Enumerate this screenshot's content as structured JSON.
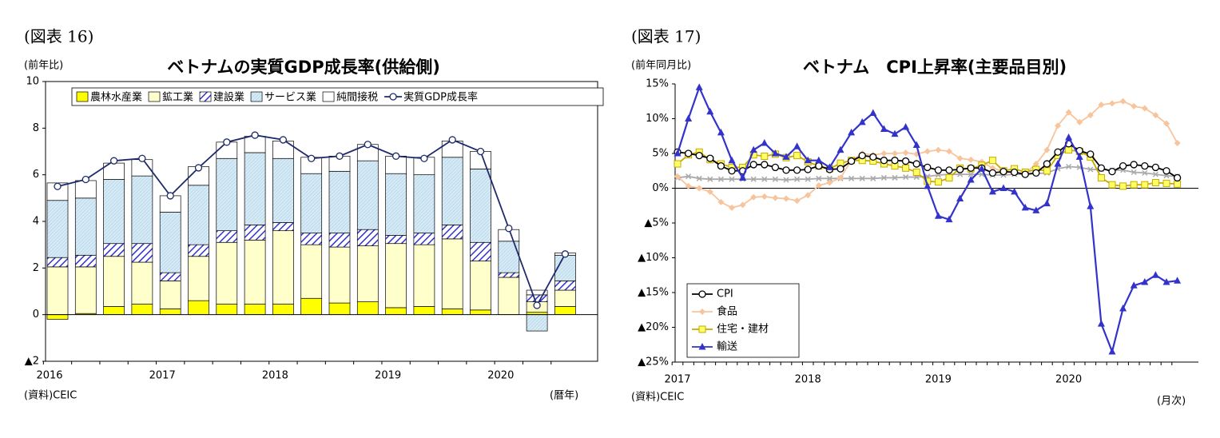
{
  "chart_data": [
    {
      "type": "bar",
      "stacked": true,
      "label": "(図表 16)",
      "title": "ベトナムの実質GDP成長率(供給側)",
      "y_label": "(前年比)",
      "source": "(資料)CEIC",
      "x_label": "(暦年)",
      "categories": [
        "2016",
        null,
        null,
        null,
        "2017",
        null,
        null,
        null,
        "2018",
        null,
        null,
        null,
        "2019",
        null,
        null,
        null,
        "2020",
        null,
        null
      ],
      "ylim": [
        -2,
        10
      ],
      "yticks": [
        {
          "value": -2,
          "label": "▲2"
        },
        0,
        2,
        4,
        6,
        8,
        10
      ],
      "series": [
        {
          "name": "農林水産業",
          "color": "#ffff00",
          "values": [
            -0.2,
            0.05,
            0.35,
            0.45,
            0.25,
            0.6,
            0.45,
            0.45,
            0.45,
            0.7,
            0.5,
            0.55,
            0.3,
            0.35,
            0.25,
            0.2,
            0,
            0.1,
            0.35
          ]
        },
        {
          "name": "鉱工業",
          "color": "#ffffcc",
          "values": [
            2.05,
            2.0,
            2.15,
            1.8,
            1.2,
            1.9,
            2.65,
            2.75,
            3.15,
            2.3,
            2.4,
            2.4,
            2.75,
            2.65,
            3.0,
            2.1,
            1.6,
            0.45,
            0.7
          ]
        },
        {
          "name": "建設業",
          "color": "#3333cc",
          "hatch": "wide",
          "values": [
            0.4,
            0.5,
            0.55,
            0.8,
            0.35,
            0.5,
            0.5,
            0.65,
            0.35,
            0.5,
            0.6,
            0.7,
            0.35,
            0.5,
            0.6,
            0.8,
            0.2,
            0.3,
            0.4
          ]
        },
        {
          "name": "サービス業",
          "color": "#cfe6f2",
          "hatch": "fine",
          "values": [
            2.45,
            2.45,
            2.75,
            2.9,
            2.6,
            2.55,
            3.1,
            3.1,
            2.75,
            2.55,
            2.65,
            2.95,
            2.65,
            2.5,
            2.9,
            3.15,
            1.35,
            -0.7,
            1.1
          ]
        },
        {
          "name": "純間接税",
          "color": "#ffffff",
          "values": [
            0.75,
            0.75,
            0.7,
            0.7,
            0.7,
            0.8,
            0.7,
            0.7,
            0.75,
            0.7,
            0.65,
            0.7,
            0.75,
            0.75,
            0.7,
            0.75,
            0.5,
            0.2,
            0.1
          ]
        },
        {
          "name": "実質GDP成長率",
          "type": "line",
          "color": "#1f2a6b",
          "marker": "circle",
          "values": [
            5.5,
            5.8,
            6.6,
            6.7,
            5.1,
            6.3,
            7.4,
            7.7,
            7.5,
            6.7,
            6.8,
            7.3,
            6.8,
            6.7,
            7.5,
            7.0,
            3.7,
            0.4,
            2.6
          ]
        }
      ]
    },
    {
      "type": "line",
      "label": "(図表 17)",
      "title": "ベトナム　CPI上昇率(主要品目別)",
      "y_label": "(前年同月比)",
      "source": "(資料)CEIC",
      "x_label": "(月次)",
      "categories": [
        "2017",
        null,
        null,
        null,
        null,
        null,
        null,
        null,
        null,
        null,
        null,
        null,
        "2018",
        null,
        null,
        null,
        null,
        null,
        null,
        null,
        null,
        null,
        null,
        null,
        "2019",
        null,
        null,
        null,
        null,
        null,
        null,
        null,
        null,
        null,
        null,
        null,
        "2020",
        null,
        null,
        null,
        null,
        null,
        null,
        null,
        null,
        null,
        null
      ],
      "ylim": [
        -25,
        15
      ],
      "yticks": [
        {
          "value": -25,
          "label": "▲25%"
        },
        {
          "value": -20,
          "label": "▲20%"
        },
        {
          "value": -15,
          "label": "▲15%"
        },
        {
          "value": -10,
          "label": "▲10%"
        },
        {
          "value": -5,
          "label": "▲5%"
        },
        {
          "value": 0,
          "label": "0%"
        },
        {
          "value": 5,
          "label": "5%"
        },
        {
          "value": 10,
          "label": "10%"
        },
        {
          "value": 15,
          "label": "15%"
        }
      ],
      "series": [
        {
          "color": "#aaaaaa",
          "marker": "x",
          "values": [
            1.5,
            1.7,
            1.4,
            1.3,
            1.3,
            1.3,
            1.3,
            1.3,
            1.3,
            1.3,
            1.2,
            1.3,
            1.3,
            1.4,
            1.4,
            1.4,
            1.4,
            1.4,
            1.4,
            1.5,
            1.5,
            1.6,
            1.6,
            1.7,
            1.9,
            2.0,
            2.0,
            2.0,
            2.0,
            1.9,
            1.9,
            2.0,
            2.0,
            2.1,
            2.2,
            2.8,
            3.1,
            3.0,
            2.7,
            2.7,
            2.6,
            2.6,
            2.3,
            2.2,
            2.0,
            1.8,
            1.7
          ]
        },
        {
          "name": "食品",
          "color": "#f8c49c",
          "marker": "diamond",
          "values": [
            1.7,
            0.3,
            0,
            -0.5,
            -2,
            -2.8,
            -2.4,
            -1.3,
            -1.2,
            -1.4,
            -1.5,
            -1.8,
            -1,
            0.4,
            0.8,
            1.5,
            4,
            5,
            4.8,
            5,
            5,
            5.1,
            4.9,
            5.3,
            5.5,
            5.3,
            4.3,
            4.1,
            3.8,
            2.9,
            2.4,
            2.2,
            2.1,
            3.5,
            5.5,
            9,
            10.9,
            9.5,
            10.5,
            12,
            12.2,
            12.5,
            11.8,
            11.5,
            10.5,
            9.3,
            6.5
          ]
        },
        {
          "name": "住宅・建材",
          "color": "#c8a800",
          "marker": "square",
          "values": [
            3.5,
            4.8,
            5.2,
            4.1,
            3.5,
            3.0,
            3.0,
            4.8,
            4.6,
            4.9,
            4.4,
            4.7,
            3.8,
            3.2,
            2.8,
            3.6,
            4.0,
            4.0,
            3.9,
            3.5,
            3.2,
            2.9,
            2.3,
            1.0,
            0.9,
            1.5,
            2.9,
            2.8,
            3.3,
            4.0,
            2.5,
            2.8,
            2.3,
            2.7,
            2.5,
            4.7,
            5.5,
            5.3,
            4.5,
            1.5,
            0.5,
            0.3,
            0.5,
            0.5,
            0.8,
            0.7,
            0.6
          ]
        },
        {
          "name": "CPI",
          "color": "#000000",
          "marker": "circle",
          "values": [
            5.2,
            5.0,
            4.7,
            4.3,
            3.2,
            2.5,
            2.5,
            3.4,
            3.4,
            3.0,
            2.6,
            2.6,
            2.7,
            3.2,
            2.7,
            2.8,
            3.9,
            4.7,
            4.5,
            4.0,
            4.0,
            3.9,
            3.5,
            3.0,
            2.6,
            2.6,
            2.7,
            2.9,
            2.9,
            2.2,
            2.4,
            2.3,
            2.0,
            2.2,
            3.5,
            5.2,
            6.4,
            5.4,
            4.9,
            2.9,
            2.4,
            3.2,
            3.4,
            3.2,
            3.0,
            2.5,
            1.5
          ]
        },
        {
          "name": "輸送",
          "color": "#3333cc",
          "marker": "triangle",
          "values": [
            5,
            10,
            14.5,
            11,
            8,
            4,
            1.5,
            5.5,
            6.5,
            5,
            4.5,
            6,
            4,
            4,
            3,
            5.5,
            8,
            9.5,
            10.8,
            8.5,
            7.8,
            8.8,
            6.2,
            0.3,
            -4,
            -4.5,
            -1.5,
            1.2,
            2.8,
            -0.5,
            0,
            -0.5,
            -2.8,
            -3.2,
            -2.2,
            3.5,
            7.3,
            4.5,
            -2.6,
            -19.5,
            -23.5,
            -17.3,
            -14,
            -13.5,
            -12.5,
            -13.5,
            -13.3
          ]
        }
      ]
    }
  ]
}
